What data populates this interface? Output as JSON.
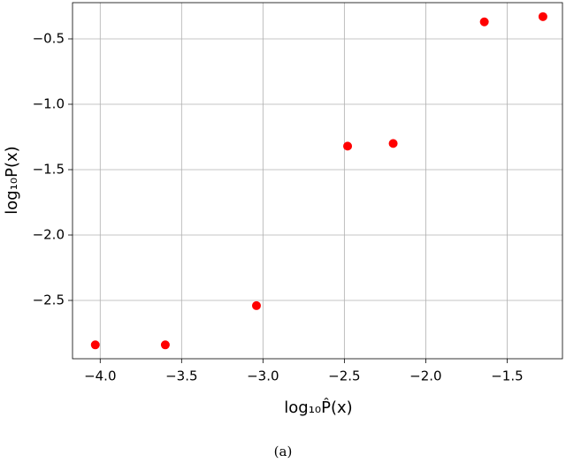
{
  "chart_data": {
    "type": "scatter",
    "x_label": "log₁₀P̂(x)",
    "y_label": "log₁₀P(x)",
    "caption": "(a)",
    "x": [
      -4.03,
      -3.6,
      -3.04,
      -2.48,
      -2.2,
      -1.64,
      -1.28
    ],
    "series": [
      {
        "color": "#ff0000",
        "values": [
          -2.84,
          -2.84,
          -2.54,
          -1.32,
          -1.3,
          -0.37,
          -0.33
        ]
      }
    ],
    "xlim": [
      -4.17,
      -1.16
    ],
    "ylim": [
      -2.946,
      -0.223
    ],
    "xticks": [
      {
        "value": -4.0,
        "label": "−4.0"
      },
      {
        "value": -3.5,
        "label": "−3.5"
      },
      {
        "value": -3.0,
        "label": "−3.0"
      },
      {
        "value": -2.5,
        "label": "−2.5"
      },
      {
        "value": -2.0,
        "label": "−2.0"
      },
      {
        "value": -1.5,
        "label": "−1.5"
      }
    ],
    "yticks": [
      {
        "value": -2.5,
        "label": "−2.5"
      },
      {
        "value": -2.0,
        "label": "−2.0"
      },
      {
        "value": -1.5,
        "label": "−1.5"
      },
      {
        "value": -1.0,
        "label": "−1.0"
      },
      {
        "value": -0.5,
        "label": "−0.5"
      }
    ],
    "grid": true
  }
}
